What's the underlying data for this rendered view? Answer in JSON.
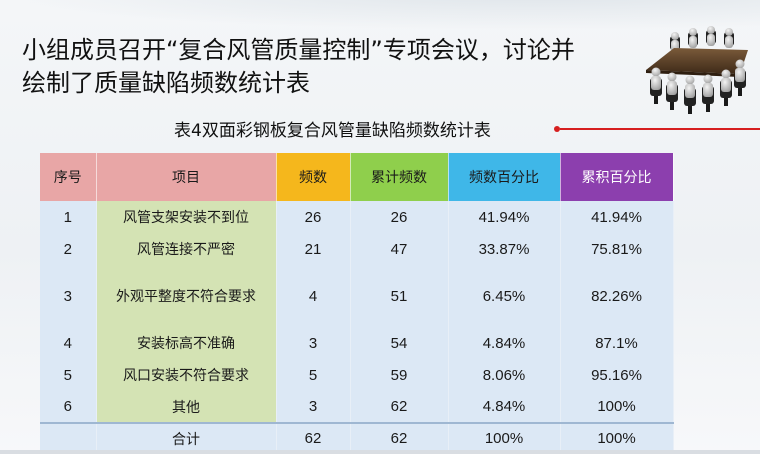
{
  "slide": {
    "title_line1": "小组成员召开“复合风管质量控制”专项会议，讨论并",
    "title_line2": "绘制了质量缺陷频数统计表",
    "illustration_icon": "meeting-table-icon"
  },
  "table": {
    "caption": "表4双面彩钢板复合风管量缺陷频数统计表",
    "headers": {
      "seq": "序号",
      "item": "项目",
      "freq": "频数",
      "cum_freq": "累计频数",
      "pct": "频数百分比",
      "cum_pct": "累积百分比"
    },
    "rows": [
      {
        "seq": "1",
        "item": "风管支架安装不到位",
        "freq": "26",
        "cum_freq": "26",
        "pct": "41.94%",
        "cum_pct": "41.94%"
      },
      {
        "seq": "2",
        "item": "风管连接不严密",
        "freq": "21",
        "cum_freq": "47",
        "pct": "33.87%",
        "cum_pct": "75.81%"
      },
      {
        "seq": "3",
        "item": "外观平整度不符合要求",
        "freq": "4",
        "cum_freq": "51",
        "pct": "6.45%",
        "cum_pct": "82.26%"
      },
      {
        "seq": "4",
        "item": "安装标高不准确",
        "freq": "3",
        "cum_freq": "54",
        "pct": "4.84%",
        "cum_pct": "87.1%"
      },
      {
        "seq": "5",
        "item": "风口安装不符合要求",
        "freq": "5",
        "cum_freq": "59",
        "pct": "8.06%",
        "cum_pct": "95.16%"
      },
      {
        "seq": "6",
        "item": "其他",
        "freq": "3",
        "cum_freq": "62",
        "pct": "4.84%",
        "cum_pct": "100%"
      }
    ],
    "total": {
      "label": "合计",
      "freq": "62",
      "cum_freq": "62",
      "pct": "100%",
      "cum_pct": "100%"
    }
  },
  "colors": {
    "header_seq_item": "#e8a6a6",
    "header_freq": "#f5b71c",
    "header_cum_freq": "#8fcf4c",
    "header_pct": "#3fb7e8",
    "header_cum_pct": "#8c3fae",
    "item_column": "#d4e3b4",
    "body_cells": "#dce8f5",
    "caption_line": "#d61f1f"
  }
}
